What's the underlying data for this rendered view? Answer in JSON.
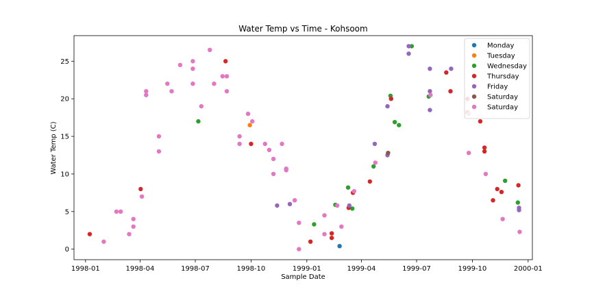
{
  "chart_data": {
    "type": "scatter",
    "title": "Water Temp vs Time - Kohsoom",
    "xlabel": "Sample Date",
    "ylabel": "Water Temp (C)",
    "xlim": [
      "1997-12-13",
      "2000-01-08"
    ],
    "ylim": [
      -1.4,
      28.4
    ],
    "x_ticks": [
      "1998-01-01",
      "1998-04-01",
      "1998-07-01",
      "1998-10-01",
      "1999-01-01",
      "1999-04-01",
      "1999-07-01",
      "1999-10-01",
      "2000-01-01"
    ],
    "x_tick_labels": [
      "1998-01",
      "1998-04",
      "1998-07",
      "1998-10",
      "1999-01",
      "1999-04",
      "1999-07",
      "1999-10",
      "2000-01"
    ],
    "y_ticks": [
      0,
      5,
      10,
      15,
      20,
      25
    ],
    "y_tick_labels": [
      "0",
      "5",
      "10",
      "15",
      "20",
      "25"
    ],
    "legend_position": "top-right",
    "series": [
      {
        "name": "Monday",
        "color": "#1f77b4",
        "points": [
          [
            "1999-02-24",
            0.4
          ]
        ]
      },
      {
        "name": "Tuesday",
        "color": "#ff7f0e",
        "points": [
          [
            "1998-09-29",
            16.5
          ]
        ]
      },
      {
        "name": "Wednesday",
        "color": "#2ca02c",
        "points": [
          [
            "1998-07-06",
            17.0
          ],
          [
            "1999-01-13",
            3.3
          ],
          [
            "1999-02-17",
            5.9
          ],
          [
            "1999-03-10",
            8.2
          ],
          [
            "1999-03-17",
            5.4
          ],
          [
            "1999-04-21",
            11.0
          ],
          [
            "1999-05-19",
            20.4
          ],
          [
            "1999-05-26",
            16.9
          ],
          [
            "1999-06-02",
            16.5
          ],
          [
            "1999-06-23",
            27.0
          ],
          [
            "1999-07-21",
            20.3
          ],
          [
            "1999-11-24",
            9.1
          ],
          [
            "1999-12-15",
            6.2
          ]
        ]
      },
      {
        "name": "Thursday",
        "color": "#d62728",
        "points": [
          [
            "1998-01-08",
            2.0
          ],
          [
            "1998-04-02",
            8.0
          ],
          [
            "1998-08-20",
            25.0
          ],
          [
            "1998-10-01",
            14.0
          ],
          [
            "1999-01-07",
            1.0
          ],
          [
            "1999-02-11",
            2.1
          ],
          [
            "1999-02-11",
            1.5
          ],
          [
            "1999-03-11",
            5.5
          ],
          [
            "1999-03-18",
            7.5
          ],
          [
            "1999-04-15",
            9.0
          ],
          [
            "1999-05-20",
            20.0
          ],
          [
            "1999-08-19",
            23.5
          ],
          [
            "1999-08-26",
            21.0
          ],
          [
            "1999-09-23",
            20.0
          ],
          [
            "1999-09-23",
            18.2
          ],
          [
            "1999-10-14",
            17.0
          ],
          [
            "1999-10-21",
            13.5
          ],
          [
            "1999-10-21",
            13.0
          ],
          [
            "1999-11-04",
            6.5
          ],
          [
            "1999-11-11",
            8.0
          ],
          [
            "1999-11-18",
            7.6
          ],
          [
            "1999-12-16",
            8.5
          ]
        ]
      },
      {
        "name": "Friday",
        "color": "#9467bd",
        "points": [
          [
            "1998-11-13",
            5.8
          ],
          [
            "1998-12-04",
            6.0
          ],
          [
            "1999-03-12",
            5.8
          ],
          [
            "1999-04-23",
            14.0
          ],
          [
            "1999-05-14",
            19.0
          ],
          [
            "1999-05-14",
            12.5
          ],
          [
            "1999-06-18",
            27.0
          ],
          [
            "1999-06-18",
            26.0
          ],
          [
            "1999-07-23",
            24.0
          ],
          [
            "1999-07-23",
            21.0
          ],
          [
            "1999-07-23",
            18.5
          ],
          [
            "1999-08-27",
            24.0
          ],
          [
            "1999-12-17",
            5.5
          ],
          [
            "1999-12-17",
            5.2
          ]
        ]
      },
      {
        "name": "Saturday",
        "color": "#8c564b",
        "points": [
          [
            "1999-05-15",
            12.8
          ]
        ]
      },
      {
        "name": "Saturday",
        "color": "#e377c2",
        "points": [
          [
            "1998-01-31",
            1.0
          ],
          [
            "1998-02-21",
            5.0
          ],
          [
            "1998-02-28",
            5.0
          ],
          [
            "1998-03-14",
            2.0
          ],
          [
            "1998-03-21",
            4.0
          ],
          [
            "1998-03-21",
            3.0
          ],
          [
            "1998-04-04",
            7.0
          ],
          [
            "1998-04-11",
            21.0
          ],
          [
            "1998-04-11",
            20.5
          ],
          [
            "1998-05-02",
            15.0
          ],
          [
            "1998-05-02",
            13.0
          ],
          [
            "1998-05-16",
            22.0
          ],
          [
            "1998-05-23",
            21.0
          ],
          [
            "1998-06-06",
            24.5
          ],
          [
            "1998-06-27",
            25.0
          ],
          [
            "1998-06-27",
            24.0
          ],
          [
            "1998-06-27",
            22.0
          ],
          [
            "1998-07-11",
            19.0
          ],
          [
            "1998-07-25",
            26.5
          ],
          [
            "1998-08-01",
            22.0
          ],
          [
            "1998-08-15",
            23.0
          ],
          [
            "1998-08-22",
            23.0
          ],
          [
            "1998-08-22",
            21.0
          ],
          [
            "1998-09-12",
            15.0
          ],
          [
            "1998-09-12",
            14.0
          ],
          [
            "1998-09-26",
            18.0
          ],
          [
            "1998-10-03",
            17.0
          ],
          [
            "1998-10-24",
            14.0
          ],
          [
            "1998-10-31",
            13.2
          ],
          [
            "1998-11-07",
            12.0
          ],
          [
            "1998-11-07",
            10.0
          ],
          [
            "1998-11-21",
            14.0
          ],
          [
            "1998-11-28",
            10.7
          ],
          [
            "1998-11-28",
            10.5
          ],
          [
            "1998-12-12",
            6.5
          ],
          [
            "1998-12-19",
            3.5
          ],
          [
            "1998-12-19",
            0.0
          ],
          [
            "1999-01-30",
            4.5
          ],
          [
            "1999-01-30",
            2.0
          ],
          [
            "1999-02-20",
            5.8
          ],
          [
            "1999-02-27",
            3.0
          ],
          [
            "1999-03-20",
            7.7
          ],
          [
            "1999-04-24",
            11.5
          ],
          [
            "1999-07-24",
            20.5
          ],
          [
            "1999-09-25",
            12.8
          ],
          [
            "1999-09-25",
            18.0
          ],
          [
            "1999-10-23",
            10.0
          ],
          [
            "1999-11-20",
            4.0
          ],
          [
            "1999-12-18",
            2.3
          ]
        ]
      }
    ]
  }
}
